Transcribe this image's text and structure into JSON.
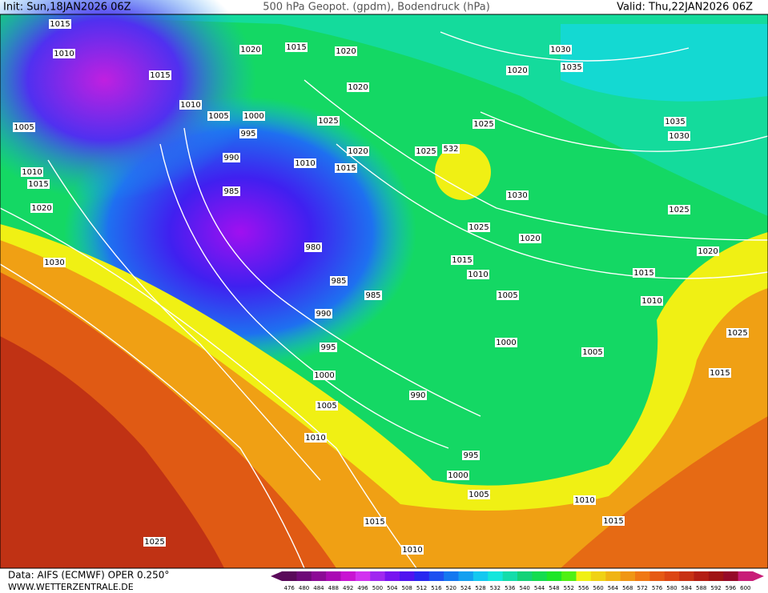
{
  "header": {
    "init": "Init: Sun,18JAN2026 06Z",
    "title": "500 hPa Geopot. (gpdm), Bodendruck (hPa)",
    "valid": "Valid: Thu,22JAN2026 06Z"
  },
  "footer": {
    "source": "Data: AIFS (ECMWF) OPER 0.250°",
    "site": "WWW.WETTERZENTRALE.DE"
  },
  "isobar_labels": [
    "1015",
    "1010",
    "1015",
    "1010",
    "1005",
    "1005",
    "1000",
    "995",
    "990",
    "985",
    "1010",
    "1015",
    "1020",
    "1030",
    "1020",
    "1015",
    "1020",
    "1020",
    "1025",
    "1020",
    "1010",
    "1015",
    "1030",
    "1020",
    "1035",
    "1025",
    "1025",
    "532",
    "1035",
    "1030",
    "1030",
    "1025",
    "1025",
    "1020",
    "1015",
    "1010",
    "1015",
    "1020",
    "1005",
    "1010",
    "980",
    "985",
    "985",
    "990",
    "995",
    "1000",
    "1005",
    "1025",
    "1015",
    "1000",
    "990",
    "1005",
    "1010",
    "995",
    "1000",
    "1005",
    "1010",
    "1015",
    "1015",
    "1010",
    "1025"
  ],
  "colorbar": {
    "labels": [
      476,
      480,
      484,
      488,
      492,
      496,
      500,
      504,
      508,
      512,
      516,
      520,
      524,
      528,
      532,
      536,
      540,
      544,
      548,
      552,
      556,
      560,
      564,
      568,
      572,
      576,
      580,
      584,
      588,
      592,
      596,
      600
    ],
    "colors": [
      "#5a0a5a",
      "#6e0a78",
      "#8c0a96",
      "#aa0ab4",
      "#c814d2",
      "#d232f0",
      "#a028f0",
      "#7814f0",
      "#5014f0",
      "#2828f0",
      "#1e50f0",
      "#1478f0",
      "#14a0f0",
      "#14c8f0",
      "#14e6dc",
      "#14dcaa",
      "#14d278",
      "#14dc50",
      "#1ee628",
      "#50f014",
      "#f0f014",
      "#f0d214",
      "#f0b414",
      "#f09614",
      "#f07814",
      "#e65a14",
      "#dc4614",
      "#c83214",
      "#b41e14",
      "#a01414",
      "#960a28",
      "#c81e78"
    ]
  }
}
